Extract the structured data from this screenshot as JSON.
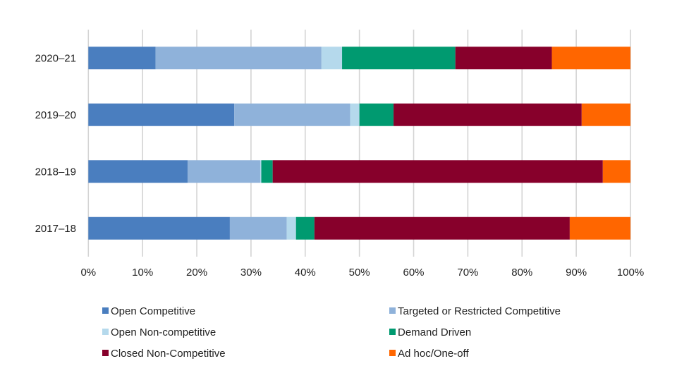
{
  "chart_data": {
    "type": "bar",
    "orientation": "horizontal",
    "stacked": "percent",
    "categories": [
      "2020–21",
      "2019–20",
      "2018–19",
      "2017–18"
    ],
    "xlim": [
      0,
      100
    ],
    "xticks": [
      "0%",
      "10%",
      "20%",
      "30%",
      "40%",
      "50%",
      "60%",
      "70%",
      "80%",
      "90%",
      "100%"
    ],
    "grid": "vertical",
    "legend_position": "bottom",
    "series": [
      {
        "name": "Open Competitive",
        "color": "#4a7ebf",
        "values": [
          12.4,
          26.9,
          18.3,
          26.1
        ]
      },
      {
        "name": "Targeted or Restricted Competitive",
        "color": "#8fb2da",
        "values": [
          30.6,
          21.4,
          13.4,
          10.5
        ]
      },
      {
        "name": "Open Non-competitive",
        "color": "#b5d9ec",
        "values": [
          3.8,
          1.7,
          0.2,
          1.7
        ]
      },
      {
        "name": "Demand Driven",
        "color": "#009a70",
        "values": [
          20.9,
          6.3,
          2.1,
          3.4
        ]
      },
      {
        "name": "Closed Non-Competitive",
        "color": "#87002b",
        "values": [
          17.8,
          34.7,
          60.9,
          47.1
        ]
      },
      {
        "name": "Ad hoc/One-off",
        "color": "#ff6600",
        "values": [
          14.5,
          9.0,
          5.1,
          11.2
        ]
      }
    ]
  }
}
